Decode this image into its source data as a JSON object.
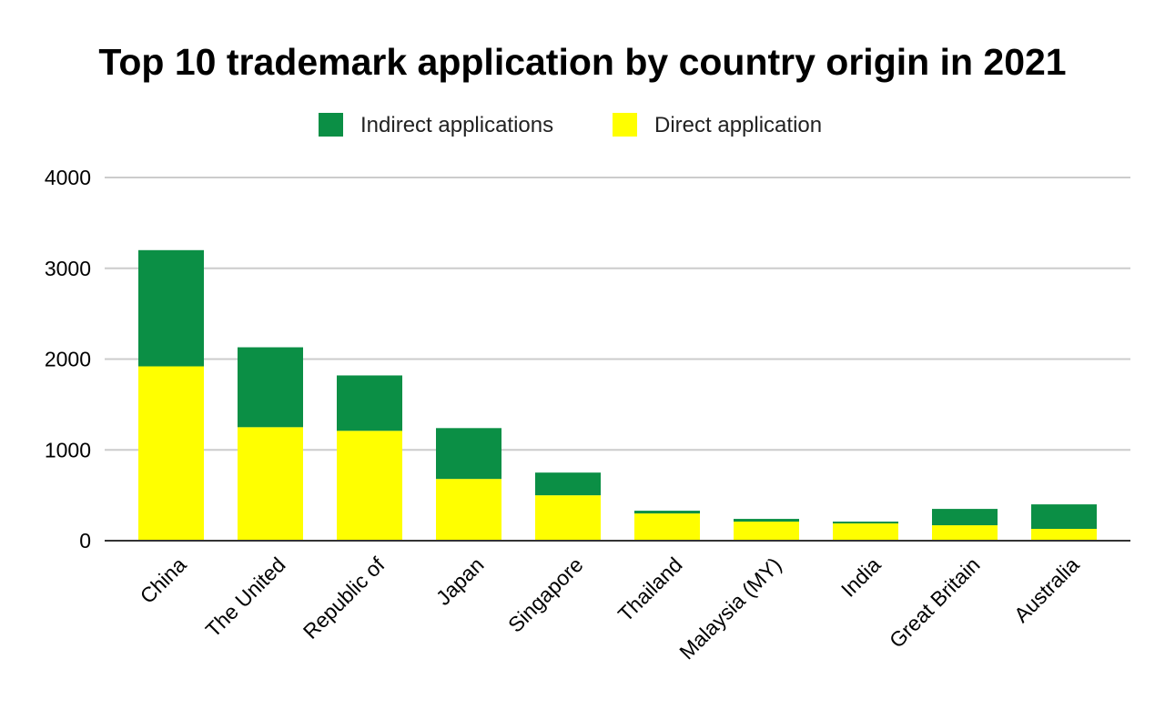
{
  "chart_data": {
    "type": "bar",
    "stacked": true,
    "title": "Top 10 trademark application by country origin in 2021",
    "xlabel": "",
    "ylabel": "",
    "ylim": [
      0,
      4000
    ],
    "yticks": [
      0,
      1000,
      2000,
      3000,
      4000
    ],
    "grid": true,
    "legend_position": "top-center",
    "categories": [
      "China",
      "The United",
      "Republic of",
      "Japan",
      "Singapore",
      "Thailand",
      "Malaysia (MY)",
      "India",
      "Great Britain",
      "Australia"
    ],
    "series": [
      {
        "name": "Direct application",
        "color": "#ffff00",
        "values": [
          1920,
          1250,
          1210,
          680,
          500,
          300,
          210,
          190,
          170,
          130
        ]
      },
      {
        "name": "Indirect applications",
        "color": "#0b8f45",
        "values": [
          1280,
          880,
          610,
          560,
          250,
          30,
          30,
          20,
          180,
          270
        ]
      }
    ],
    "legend_order": [
      "Indirect applications",
      "Direct application"
    ]
  }
}
